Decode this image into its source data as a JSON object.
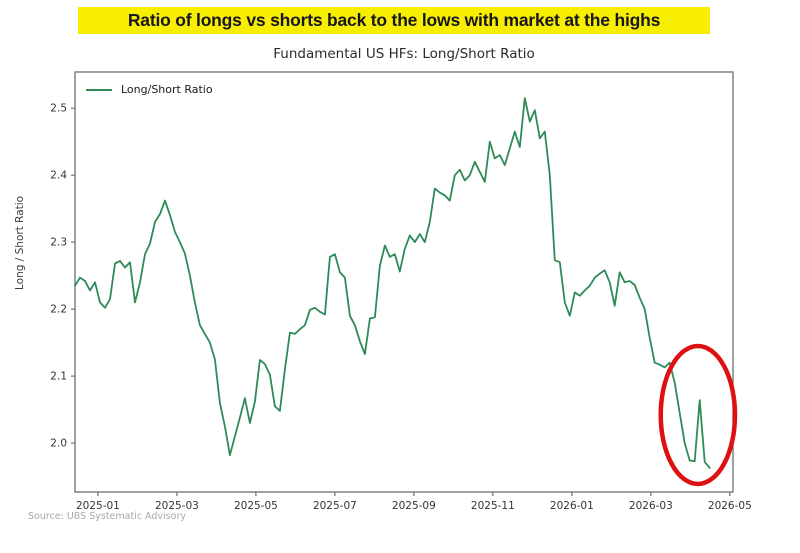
{
  "headline": {
    "text": "Ratio of longs vs shorts back to the lows with market at the highs",
    "highlight_color": "#f8ee00",
    "text_color": "#17171e"
  },
  "chart": {
    "title": "Fundamental US HFs: Long/Short Ratio",
    "legend_label": "Long/Short Ratio",
    "y_axis_label": "Long / Short Ratio",
    "source": "Source: UBS Systematic Advisory",
    "line_color": "#2e8b57",
    "annotation_color": "#dd1111",
    "axis_color": "#6e6e6e",
    "tick_text_color": "#333333"
  },
  "chart_data": {
    "type": "line",
    "title": "Fundamental US HFs: Long/Short Ratio",
    "xlabel": "",
    "ylabel": "Long / Short Ratio",
    "legend": [
      "Long/Short Ratio"
    ],
    "legend_position": "upper left",
    "grid": false,
    "ylim": [
      1.927,
      2.554
    ],
    "y_ticks": [
      "2.0",
      "2.1",
      "2.2",
      "2.3",
      "2.4",
      "2.5"
    ],
    "x_axis": {
      "min_month": -0.58,
      "max_month": 16.08,
      "ticks": [
        {
          "m": 0,
          "label": "2025-01"
        },
        {
          "m": 2,
          "label": "2025-03"
        },
        {
          "m": 4,
          "label": "2025-05"
        },
        {
          "m": 6,
          "label": "2025-07"
        },
        {
          "m": 8,
          "label": "2025-09"
        },
        {
          "m": 10,
          "label": "2025-11"
        },
        {
          "m": 12,
          "label": "2026-01"
        },
        {
          "m": 14,
          "label": "2026-03"
        },
        {
          "m": 16,
          "label": "2026-05"
        }
      ]
    },
    "series": [
      {
        "name": "Long/Short Ratio",
        "color": "#2e8b57",
        "start_month": -0.58,
        "end_month": 15.49,
        "start_date_approx": "2024-12-14",
        "end_date_approx": "2026-04-16",
        "sampling": "evenly spaced, approx every 4 days",
        "values": [
          2.235,
          2.247,
          2.242,
          2.228,
          2.24,
          2.21,
          2.202,
          2.215,
          2.268,
          2.272,
          2.262,
          2.27,
          2.21,
          2.24,
          2.282,
          2.298,
          2.33,
          2.342,
          2.362,
          2.34,
          2.315,
          2.3,
          2.283,
          2.25,
          2.21,
          2.176,
          2.163,
          2.15,
          2.125,
          2.06,
          2.025,
          1.982,
          2.01,
          2.038,
          2.067,
          2.03,
          2.062,
          2.124,
          2.118,
          2.102,
          2.055,
          2.048,
          2.11,
          2.165,
          2.163,
          2.17,
          2.176,
          2.199,
          2.202,
          2.196,
          2.192,
          2.278,
          2.282,
          2.255,
          2.247,
          2.19,
          2.176,
          2.152,
          2.133,
          2.186,
          2.188,
          2.265,
          2.295,
          2.278,
          2.282,
          2.256,
          2.29,
          2.31,
          2.3,
          2.312,
          2.3,
          2.33,
          2.38,
          2.374,
          2.37,
          2.362,
          2.4,
          2.408,
          2.392,
          2.4,
          2.42,
          2.405,
          2.39,
          2.45,
          2.425,
          2.43,
          2.415,
          2.44,
          2.465,
          2.442,
          2.515,
          2.48,
          2.497,
          2.455,
          2.465,
          2.4,
          2.273,
          2.27,
          2.21,
          2.19,
          2.225,
          2.22,
          2.228,
          2.235,
          2.247,
          2.253,
          2.258,
          2.24,
          2.205,
          2.255,
          2.24,
          2.242,
          2.236,
          2.217,
          2.2,
          2.157,
          2.12,
          2.117,
          2.113,
          2.12,
          2.09,
          2.045,
          2.0,
          1.974,
          1.973,
          2.064,
          1.972,
          1.963
        ]
      }
    ],
    "annotation": {
      "shape": "ellipse",
      "meaning": "red circle highlighting the final drop of the ratio back to the lows",
      "center_month": 15.19,
      "center_value": 2.042,
      "rx_months": 0.94,
      "ry_value": 0.103,
      "color": "#dd1111"
    }
  }
}
